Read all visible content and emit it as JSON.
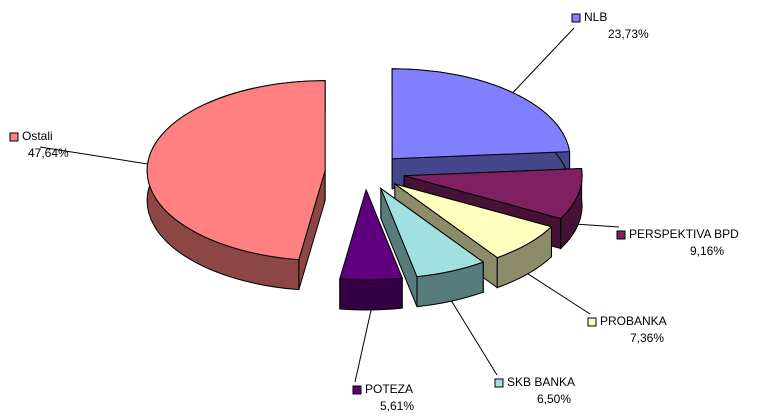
{
  "chart_data": {
    "type": "pie3d",
    "categories": [
      "NLB",
      "PERSPEKTIVA BPD",
      "PROBANKA",
      "SKB BANKA",
      "POTEZA",
      "Ostali"
    ],
    "values": [
      23.73,
      9.16,
      7.36,
      6.5,
      5.61,
      47.64
    ],
    "value_labels": [
      "23,73%",
      "9,16%",
      "7,36%",
      "6,50%",
      "5,61%",
      "47,64%"
    ],
    "colors": [
      "#8080ff",
      "#802060",
      "#ffffc0",
      "#a0e0e0",
      "#600080",
      "#ff8080"
    ]
  }
}
